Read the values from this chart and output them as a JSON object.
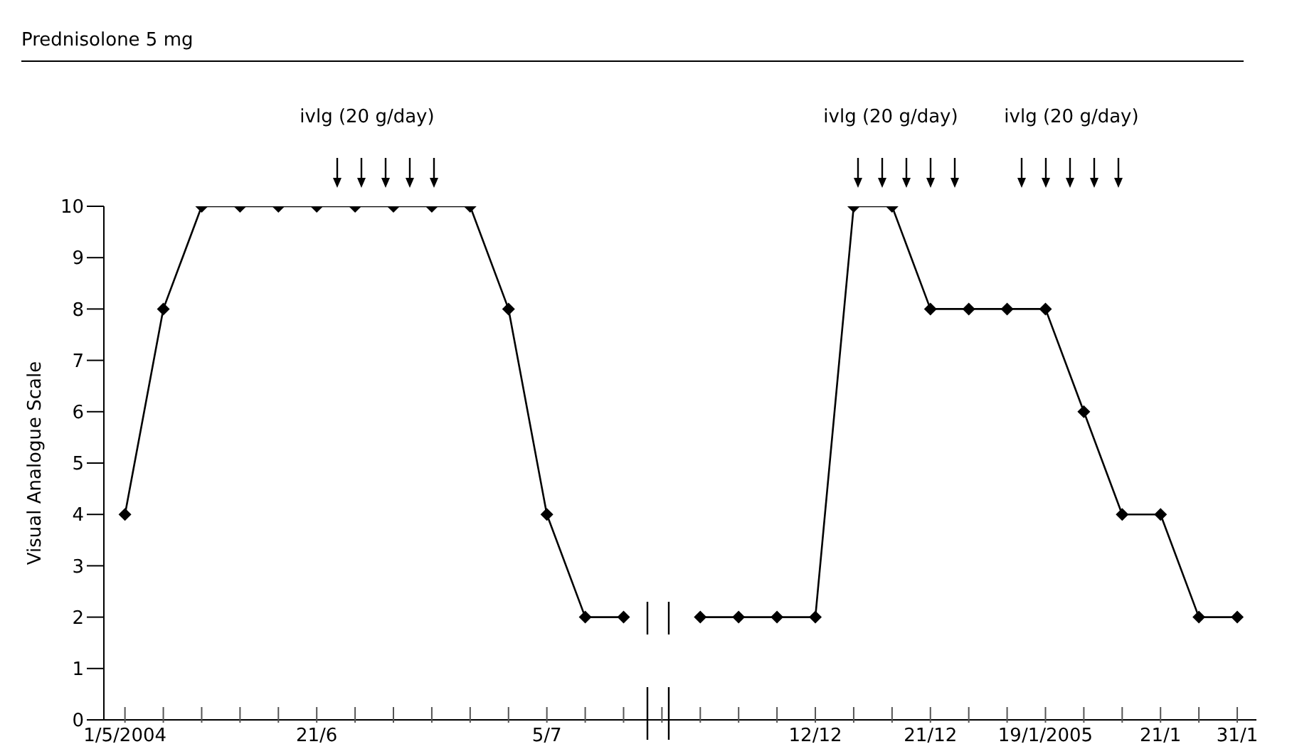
{
  "chart_data": {
    "type": "line",
    "ylabel": "Visual Analogue Scale",
    "annotations": [
      "Prednisolone 5 mg",
      "ivlg (20 g/day)",
      "ivlg (20 g/day)",
      "ivlg (20 g/day)"
    ],
    "categories": [
      "1/5/2004",
      null,
      null,
      null,
      null,
      "21/6",
      null,
      null,
      null,
      null,
      null,
      "5/7",
      null,
      null,
      null,
      null,
      null,
      null,
      "12/12",
      null,
      null,
      "21/12",
      null,
      null,
      "19/1/2005",
      null,
      null,
      "21/1",
      null,
      "31/1"
    ],
    "series": [
      {
        "color": "#000000",
        "values": [
          4,
          8,
          10,
          10,
          10,
          10,
          10,
          10,
          10,
          10,
          8,
          4,
          2,
          2,
          null,
          2,
          2,
          2,
          2,
          10,
          10,
          8,
          8,
          8,
          8,
          6,
          4,
          4,
          2,
          2
        ]
      }
    ],
    "ylim": [
      0,
      10
    ],
    "yticks": [
      0,
      1,
      2,
      3,
      4,
      5,
      6,
      7,
      8,
      9,
      10
    ],
    "grid": false,
    "legend": false,
    "marker": "diamond",
    "line_style": "solid"
  }
}
